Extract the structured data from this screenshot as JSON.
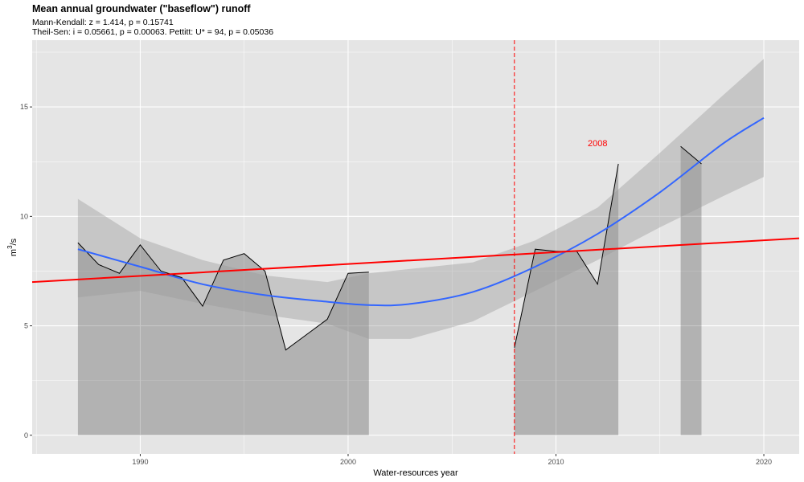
{
  "chart_data": {
    "type": "line",
    "title": "Mean annual groundwater (\"baseflow\") runoff",
    "subtitle_line1": "Mann-Kendall: z = 1.414, p = 0.15741",
    "subtitle_line2": "Theil-Sen: i = 0.05661, p = 0.00063. Pettitt: U* = 94, p = 0.05036",
    "xlabel": "Water-resources year",
    "ylabel_base": "m",
    "ylabel_sup": "3",
    "ylabel_tail": "/s",
    "xlim": [
      1984.8,
      2021.7
    ],
    "ylim": [
      -0.85,
      18.05
    ],
    "x_ticks": [
      1990,
      2000,
      2010,
      2020
    ],
    "x_tick_labels": [
      "1990",
      "2000",
      "2010",
      "2020"
    ],
    "y_ticks": [
      0,
      5,
      10,
      15
    ],
    "y_tick_labels": [
      "0",
      "5",
      "10",
      "15"
    ],
    "grid": true,
    "series": [
      {
        "segments": [
          {
            "x": [
              1987,
              1988,
              1989,
              1990,
              1991,
              1992,
              1993,
              1994,
              1995,
              1996,
              1997,
              1998,
              1999,
              2000,
              2001
            ],
            "y": [
              8.8,
              7.8,
              7.4,
              8.7,
              7.5,
              7.2,
              5.9,
              8.0,
              8.3,
              7.5,
              3.9,
              4.6,
              5.3,
              7.4,
              7.45
            ]
          },
          {
            "x": [
              2008,
              2009,
              2010,
              2011,
              2012,
              2013
            ],
            "y": [
              4.0,
              8.5,
              8.4,
              8.4,
              6.9,
              12.4
            ]
          },
          {
            "x": [
              2016,
              2017
            ],
            "y": [
              13.2,
              12.4
            ]
          }
        ],
        "line_color": "#000000",
        "fill_color": "#000000"
      },
      {
        "smooth_x": [
          1987,
          1990,
          1993,
          1996,
          1999,
          2001,
          2003,
          2006,
          2009,
          2012,
          2015,
          2018,
          2020
        ],
        "smooth_y": [
          8.5,
          7.7,
          6.9,
          6.4,
          6.1,
          5.95,
          6.0,
          6.55,
          7.7,
          9.2,
          11.1,
          13.3,
          14.5
        ],
        "ci_lower": [
          6.3,
          6.6,
          6.0,
          5.5,
          5.1,
          4.4,
          4.4,
          5.2,
          6.6,
          8.0,
          9.5,
          10.9,
          11.8
        ],
        "ci_upper": [
          10.8,
          9.0,
          8.0,
          7.3,
          7.0,
          7.4,
          7.6,
          7.9,
          8.9,
          10.4,
          12.9,
          15.5,
          17.2
        ],
        "line_color": "#3366FF",
        "band_color": "#999999"
      },
      {
        "trend_x": [
          1984.8,
          2021.7
        ],
        "trend_y": [
          7.0,
          9.0
        ],
        "line_color": "#FF0000"
      }
    ],
    "change_point": {
      "x": 2008,
      "label": "2008",
      "label_x": 2012,
      "label_y": 13.2,
      "color": "#FF0000"
    },
    "panel_background": "#E5E5E5",
    "grid_color": "#FFFFFF"
  }
}
